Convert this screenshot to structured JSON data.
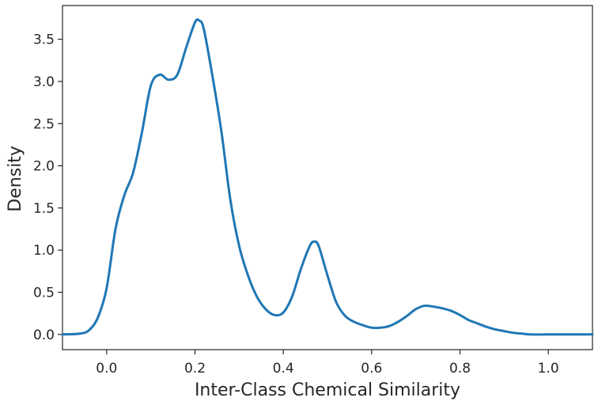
{
  "chart_data": {
    "type": "line",
    "title": "",
    "xlabel": "Inter-Class Chemical Similarity",
    "ylabel": "Density",
    "xlim": [
      -0.1,
      1.1
    ],
    "ylim": [
      -0.18,
      3.9
    ],
    "x_ticks": [
      "0.0",
      "0.2",
      "0.4",
      "0.6",
      "0.8",
      "1.0"
    ],
    "y_ticks": [
      "0.0",
      "0.5",
      "1.0",
      "1.5",
      "2.0",
      "2.5",
      "3.0",
      "3.5"
    ],
    "grid": false,
    "legend": "none",
    "series": [
      {
        "color": "#1f77b4",
        "x": [
          -0.1,
          -0.06,
          -0.04,
          -0.02,
          0.0,
          0.02,
          0.04,
          0.06,
          0.08,
          0.1,
          0.12,
          0.14,
          0.16,
          0.18,
          0.2,
          0.21,
          0.22,
          0.24,
          0.26,
          0.28,
          0.3,
          0.32,
          0.34,
          0.36,
          0.38,
          0.4,
          0.42,
          0.44,
          0.46,
          0.47,
          0.48,
          0.5,
          0.52,
          0.54,
          0.56,
          0.58,
          0.6,
          0.62,
          0.64,
          0.66,
          0.68,
          0.7,
          0.72,
          0.74,
          0.76,
          0.78,
          0.8,
          0.82,
          0.84,
          0.86,
          0.88,
          0.9,
          0.92,
          0.94,
          0.96,
          1.0,
          1.05,
          1.1
        ],
        "values": [
          0.0,
          0.01,
          0.05,
          0.2,
          0.55,
          1.25,
          1.65,
          1.92,
          2.4,
          2.95,
          3.08,
          3.02,
          3.08,
          3.4,
          3.7,
          3.72,
          3.62,
          3.05,
          2.4,
          1.6,
          1.05,
          0.7,
          0.45,
          0.3,
          0.23,
          0.26,
          0.45,
          0.78,
          1.05,
          1.1,
          1.05,
          0.7,
          0.38,
          0.22,
          0.15,
          0.11,
          0.08,
          0.08,
          0.1,
          0.15,
          0.22,
          0.3,
          0.34,
          0.33,
          0.31,
          0.28,
          0.23,
          0.17,
          0.13,
          0.09,
          0.06,
          0.04,
          0.02,
          0.01,
          0.0,
          0.0,
          0.0,
          0.0
        ]
      }
    ]
  }
}
